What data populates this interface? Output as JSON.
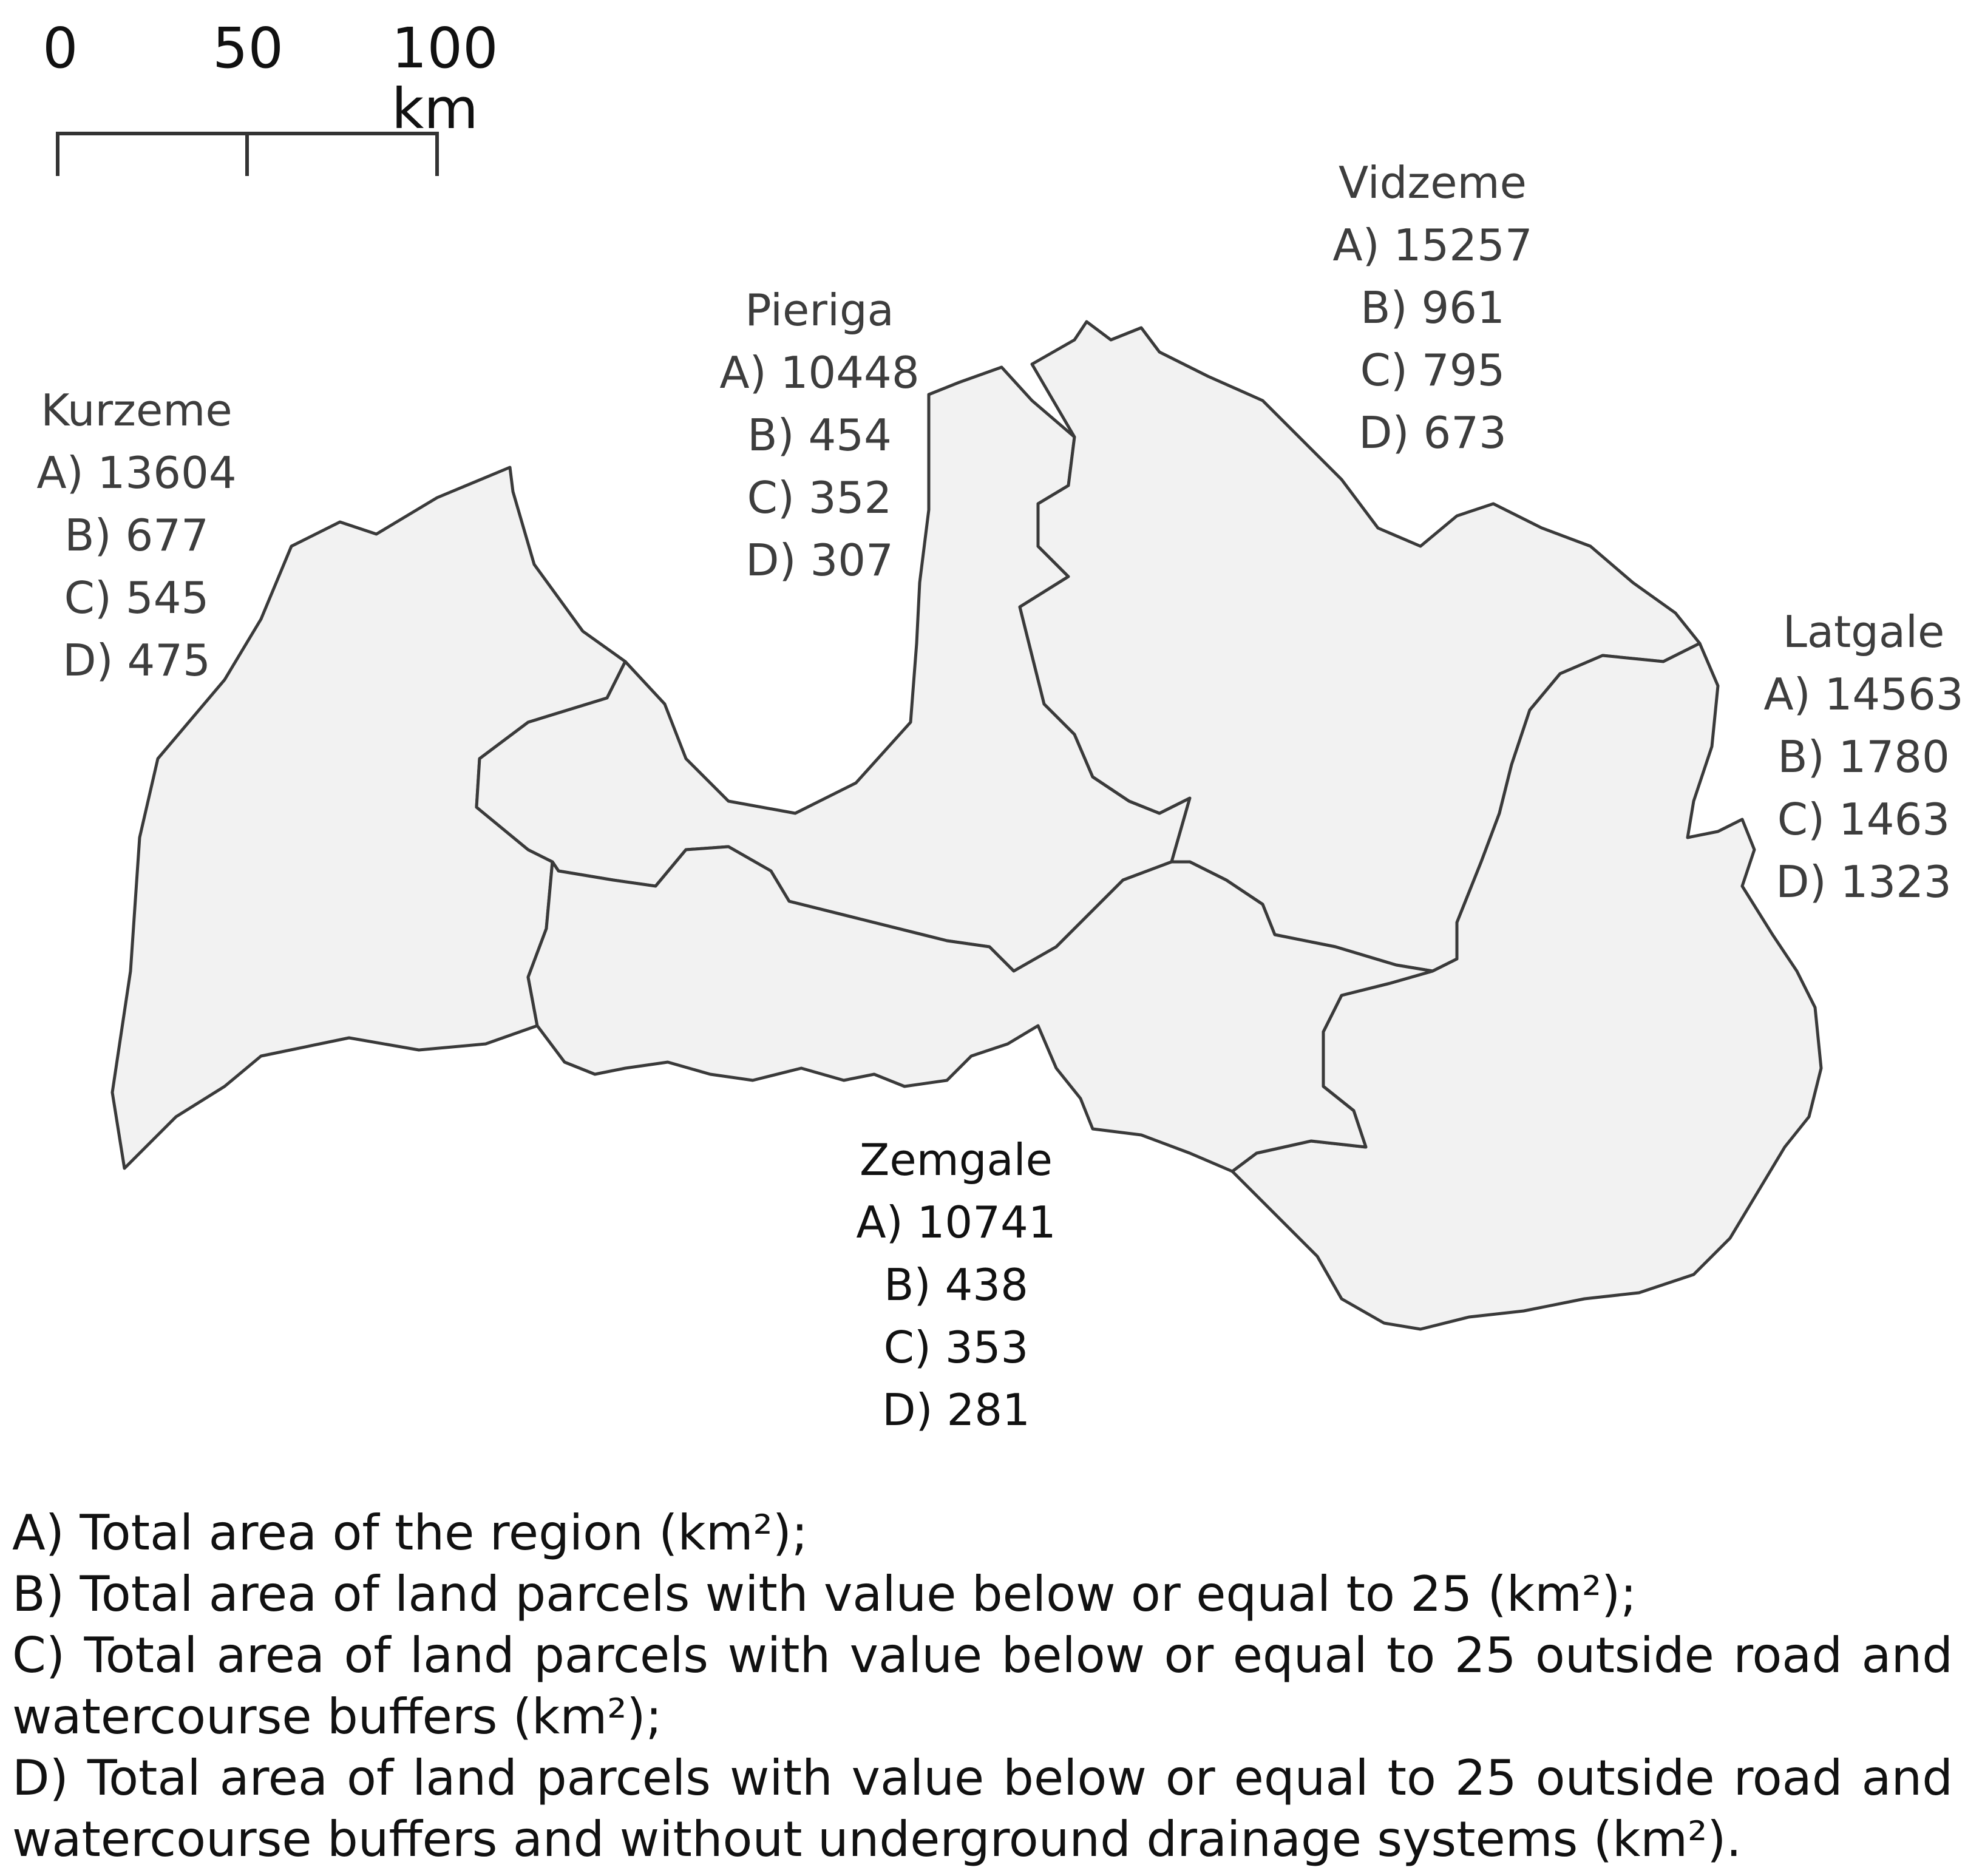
{
  "scalebar": {
    "label_0": "0",
    "label_50": "50",
    "label_100": "100 km"
  },
  "regions": {
    "kurzeme": {
      "name": "Kurzeme",
      "a": "A) 13604",
      "b": "B) 677",
      "c": "C) 545",
      "d": "D) 475"
    },
    "pieriga": {
      "name": "Pieriga",
      "a": "A) 10448",
      "b": "B) 454",
      "c": "C) 352",
      "d": "D) 307"
    },
    "vidzeme": {
      "name": "Vidzeme",
      "a": "A) 15257",
      "b": "B) 961",
      "c": "C) 795",
      "d": "D) 673"
    },
    "latgale": {
      "name": "Latgale",
      "a": "A) 14563",
      "b": "B) 1780",
      "c": "C) 1463",
      "d": "D) 1323"
    },
    "zemgale": {
      "name": "Zemgale",
      "a": "A) 10741",
      "b": "B) 438",
      "c": "C) 353",
      "d": "D) 281"
    }
  },
  "legend": {
    "a": "A) Total area of the region (km²);",
    "b": "B) Total area of land parcels with value below or equal to 25 (km²);",
    "c": "C) Total area of land parcels with value below or equal to 25 outside road and watercourse buffers (km²);",
    "d": "D) Total area of land parcels with value below or equal to 25 outside road and watercourse buffers and without underground drainage systems (km²)."
  },
  "colors": {
    "region_fill": "#f2f2f2",
    "boundary": "#3a3a3a",
    "text": "#222222"
  }
}
